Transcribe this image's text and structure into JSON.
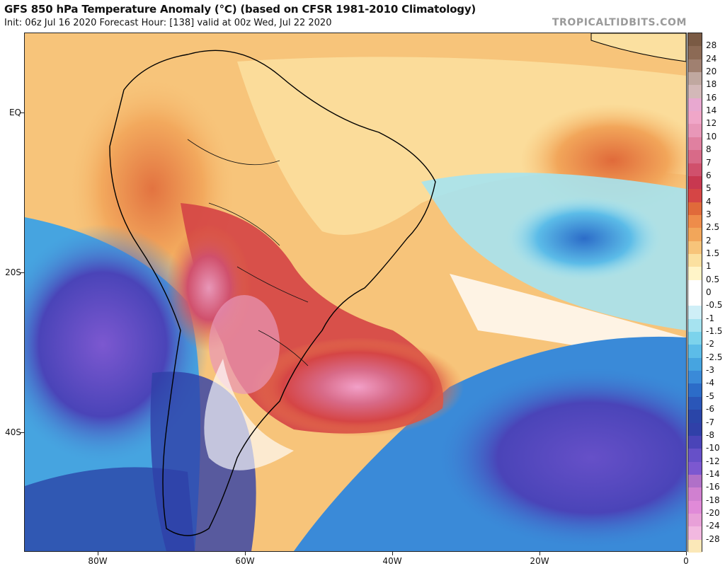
{
  "header": {
    "title": "GFS 850 hPa Temperature Anomaly (°C) (based on CFSR 1981-2010 Climatology)",
    "subtitle": "Init: 06z Jul 16 2020   Forecast Hour: [138]   valid at 00z Wed, Jul 22 2020",
    "credit": "TROPICALTIDBITS.COM"
  },
  "axes": {
    "lat_labels": [
      "EQ",
      "20S",
      "40S"
    ],
    "lon_labels": [
      "80W",
      "60W",
      "40W",
      "20W",
      "0"
    ]
  },
  "map_layers": {
    "land_mass": "south-america",
    "field": "temperature-anomaly-shading"
  },
  "colorbar": {
    "labels": [
      "28",
      "24",
      "20",
      "18",
      "16",
      "14",
      "12",
      "10",
      "8",
      "7",
      "6",
      "5",
      "4",
      "3",
      "2.5",
      "2",
      "1.5",
      "1",
      "0.5",
      "0",
      "-0.5",
      "-1",
      "-1.5",
      "-2",
      "-2.5",
      "-3",
      "-4",
      "-5",
      "-6",
      "-7",
      "-8",
      "-10",
      "-12",
      "-14",
      "-16",
      "-18",
      "-20",
      "-24",
      "-28"
    ],
    "colors": [
      "#7a5a44",
      "#8c6a55",
      "#a08070",
      "#c0a8a0",
      "#d3b8b8",
      "#e8a8d0",
      "#f0a6c8",
      "#e897b8",
      "#e080a0",
      "#d86a88",
      "#d0506c",
      "#c83850",
      "#d54545",
      "#e06a3a",
      "#ee8c4a",
      "#f2a65a",
      "#f7c47a",
      "#fbe0a0",
      "#fff4c8",
      "#ffffff",
      "#ffffff",
      "#cfeff7",
      "#a6e3f0",
      "#7cd3ec",
      "#5cbce8",
      "#46a4e0",
      "#3a8ad8",
      "#2c6cc8",
      "#2a56b8",
      "#2a45a8",
      "#3040a8",
      "#4a44b8",
      "#6650c8",
      "#7c58d0",
      "#b070c8",
      "#d080d0",
      "#e08ad8",
      "#e8a0d8",
      "#f2b8e0",
      "#fbe8b8"
    ]
  }
}
